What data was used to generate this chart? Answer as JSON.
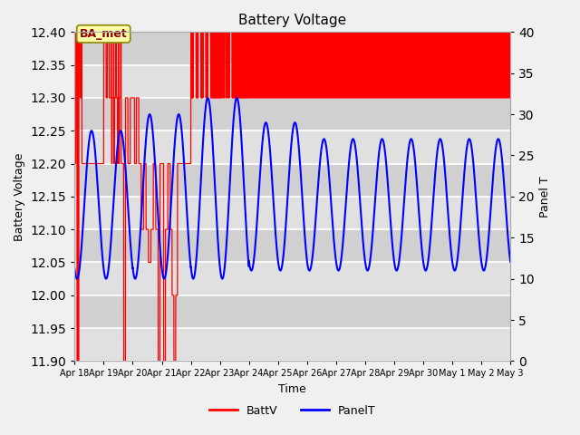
{
  "title": "Battery Voltage",
  "xlabel": "Time",
  "ylabel_left": "Battery Voltage",
  "ylabel_right": "Panel T",
  "ylim_left": [
    11.9,
    12.4
  ],
  "ylim_right": [
    0,
    40
  ],
  "yticks_left": [
    11.9,
    11.95,
    12.0,
    12.05,
    12.1,
    12.15,
    12.2,
    12.25,
    12.3,
    12.35,
    12.4
  ],
  "yticks_right": [
    0,
    5,
    10,
    15,
    20,
    25,
    30,
    35,
    40
  ],
  "background_color": "#f0f0f0",
  "plot_bg_light": "#e8e8e8",
  "plot_bg_dark": "#d8d8d8",
  "grid_color": "#ffffff",
  "batt_color": "red",
  "panel_color": "blue",
  "annotation_text": "BA_met",
  "annotation_bg": "#ffffaa",
  "annotation_border": "#888800",
  "x_tick_labels": [
    "Apr 18",
    "Apr 19",
    "Apr 20",
    "Apr 21",
    "Apr 22",
    "Apr 23",
    "Apr 24",
    "Apr 25",
    "Apr 26",
    "Apr 27",
    "Apr 28",
    "Apr 29",
    "Apr 30",
    "May 1",
    "May 2",
    "May 3"
  ],
  "legend_labels": [
    "BattV",
    "PanelT"
  ],
  "legend_colors": [
    "red",
    "blue"
  ],
  "total_days": 15
}
